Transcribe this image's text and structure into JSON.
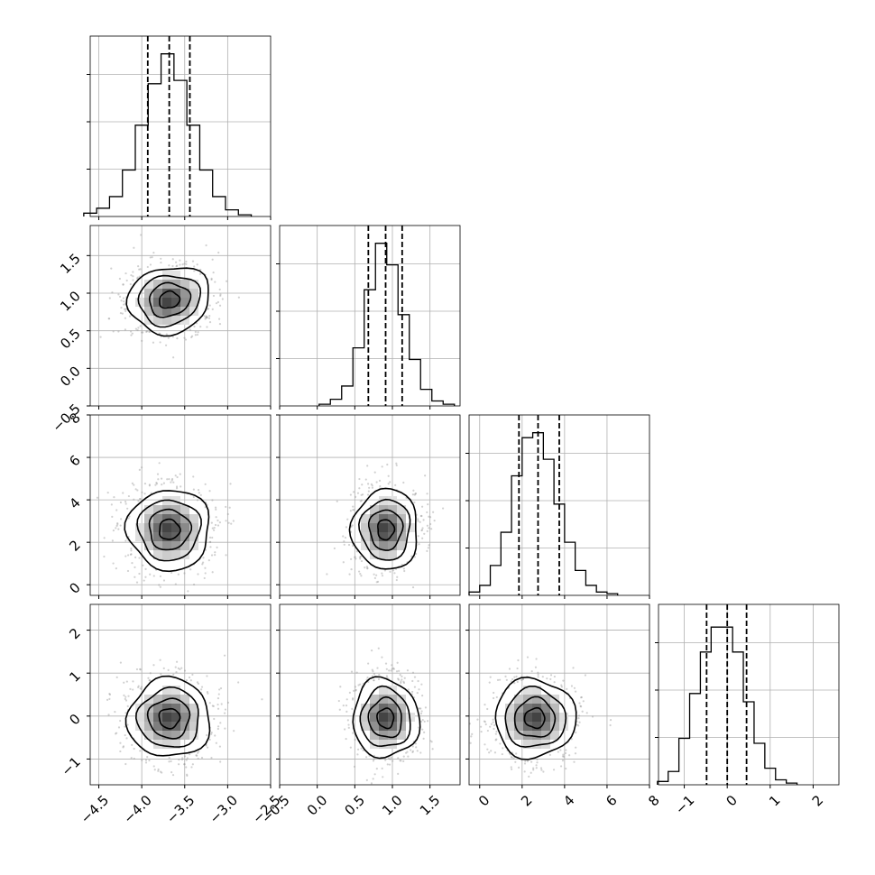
{
  "chart_data": {
    "type": "corner",
    "title": "",
    "parameters": [
      {
        "range": [
          -4.6,
          -2.5
        ],
        "ticks": [
          -4.5,
          -4.0,
          -3.5,
          -3.0,
          -2.5
        ],
        "tick_labels": [
          "−4.5",
          "−4.0",
          "−3.5",
          "−3.0",
          "−2.5"
        ],
        "quantiles": [
          -3.93,
          -3.68,
          -3.44
        ],
        "hist": [
          {
            "x": -4.6,
            "y": 0.02
          },
          {
            "x": -4.45,
            "y": 0.05
          },
          {
            "x": -4.3,
            "y": 0.12
          },
          {
            "x": -4.15,
            "y": 0.28
          },
          {
            "x": -4.0,
            "y": 0.55
          },
          {
            "x": -3.85,
            "y": 0.8
          },
          {
            "x": -3.7,
            "y": 0.98
          },
          {
            "x": -3.55,
            "y": 0.82
          },
          {
            "x": -3.4,
            "y": 0.55
          },
          {
            "x": -3.25,
            "y": 0.28
          },
          {
            "x": -3.1,
            "y": 0.12
          },
          {
            "x": -2.95,
            "y": 0.04
          },
          {
            "x": -2.8,
            "y": 0.01
          }
        ]
      },
      {
        "range": [
          -0.5,
          1.9
        ],
        "ticks": [
          -0.5,
          0.0,
          0.5,
          1.0,
          1.5
        ],
        "tick_labels": [
          "−0.5",
          "0.0",
          "0.5",
          "1.0",
          "1.5"
        ],
        "quantiles": [
          0.68,
          0.91,
          1.13
        ],
        "hist": [
          {
            "x": 0.1,
            "y": 0.01
          },
          {
            "x": 0.25,
            "y": 0.04
          },
          {
            "x": 0.4,
            "y": 0.12
          },
          {
            "x": 0.55,
            "y": 0.35
          },
          {
            "x": 0.7,
            "y": 0.7
          },
          {
            "x": 0.85,
            "y": 0.98
          },
          {
            "x": 1.0,
            "y": 0.85
          },
          {
            "x": 1.15,
            "y": 0.55
          },
          {
            "x": 1.3,
            "y": 0.28
          },
          {
            "x": 1.45,
            "y": 0.1
          },
          {
            "x": 1.6,
            "y": 0.03
          },
          {
            "x": 1.75,
            "y": 0.01
          }
        ]
      },
      {
        "range": [
          -0.5,
          8.0
        ],
        "ticks": [
          0,
          2,
          4,
          6,
          8
        ],
        "tick_labels": [
          "0",
          "2",
          "4",
          "6",
          "8"
        ],
        "quantiles": [
          1.85,
          2.75,
          3.75
        ],
        "hist": [
          {
            "x": -0.25,
            "y": 0.02
          },
          {
            "x": 0.25,
            "y": 0.06
          },
          {
            "x": 0.75,
            "y": 0.18
          },
          {
            "x": 1.25,
            "y": 0.38
          },
          {
            "x": 1.75,
            "y": 0.72
          },
          {
            "x": 2.25,
            "y": 0.95
          },
          {
            "x": 2.75,
            "y": 0.98
          },
          {
            "x": 3.25,
            "y": 0.82
          },
          {
            "x": 3.75,
            "y": 0.55
          },
          {
            "x": 4.25,
            "y": 0.32
          },
          {
            "x": 4.75,
            "y": 0.15
          },
          {
            "x": 5.25,
            "y": 0.06
          },
          {
            "x": 5.75,
            "y": 0.02
          },
          {
            "x": 6.25,
            "y": 0.01
          }
        ]
      },
      {
        "range": [
          -1.6,
          2.6
        ],
        "ticks": [
          -1,
          0,
          1,
          2
        ],
        "tick_labels": [
          "−1",
          "0",
          "1",
          "2"
        ],
        "quantiles": [
          -0.48,
          0.0,
          0.45
        ],
        "hist": [
          {
            "x": -1.5,
            "y": 0.02
          },
          {
            "x": -1.25,
            "y": 0.08
          },
          {
            "x": -1.0,
            "y": 0.28
          },
          {
            "x": -0.75,
            "y": 0.55
          },
          {
            "x": -0.5,
            "y": 0.8
          },
          {
            "x": -0.25,
            "y": 0.95
          },
          {
            "x": 0.0,
            "y": 0.95
          },
          {
            "x": 0.25,
            "y": 0.8
          },
          {
            "x": 0.5,
            "y": 0.5
          },
          {
            "x": 0.75,
            "y": 0.25
          },
          {
            "x": 1.0,
            "y": 0.1
          },
          {
            "x": 1.25,
            "y": 0.03
          },
          {
            "x": 1.5,
            "y": 0.01
          }
        ]
      }
    ],
    "pairs": [
      {
        "row": 1,
        "col": 0,
        "center": [
          -3.68,
          0.91
        ],
        "sigma": [
          0.24,
          0.22
        ],
        "corr": -0.3
      },
      {
        "row": 2,
        "col": 0,
        "center": [
          -3.68,
          2.6
        ],
        "sigma": [
          0.24,
          0.95
        ],
        "corr": 0.0
      },
      {
        "row": 2,
        "col": 1,
        "center": [
          0.91,
          2.6
        ],
        "sigma": [
          0.22,
          0.95
        ],
        "corr": 0.0
      },
      {
        "row": 3,
        "col": 0,
        "center": [
          -3.68,
          -0.05
        ],
        "sigma": [
          0.24,
          0.46
        ],
        "corr": 0.0
      },
      {
        "row": 3,
        "col": 1,
        "center": [
          0.91,
          -0.05
        ],
        "sigma": [
          0.22,
          0.46
        ],
        "corr": -0.15
      },
      {
        "row": 3,
        "col": 2,
        "center": [
          2.6,
          -0.05
        ],
        "sigma": [
          0.95,
          0.46
        ],
        "corr": 0.0
      }
    ],
    "contour_levels_sigma": [
      0.5,
      1.0,
      1.5,
      2.0
    ],
    "grid": true
  }
}
